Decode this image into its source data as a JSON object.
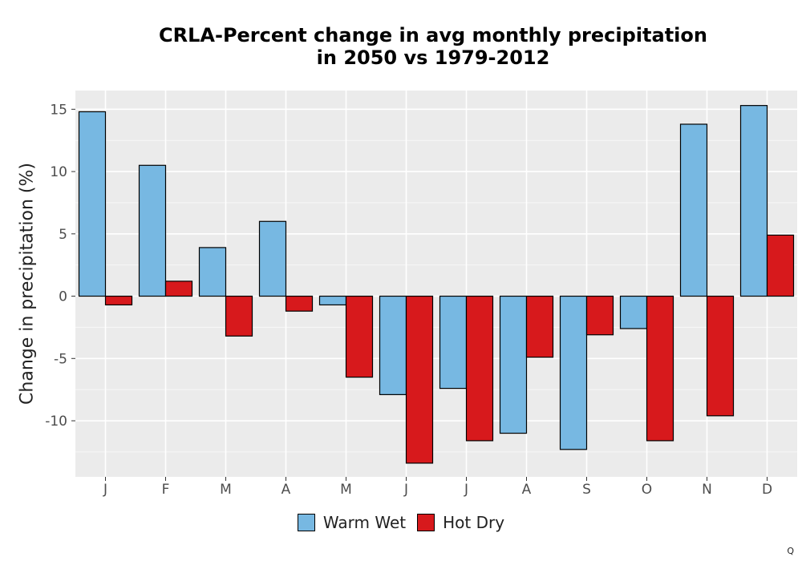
{
  "chart_data": {
    "type": "bar",
    "title_line1": "CRLA-Percent change in avg monthly precipitation",
    "title_line2": "in 2050 vs 1979-2012",
    "xlabel": "",
    "ylabel": "Change in precipitation (%)",
    "categories": [
      "J",
      "F",
      "M",
      "A",
      "M",
      "J",
      "J",
      "A",
      "S",
      "O",
      "N",
      "D"
    ],
    "ylim": [
      -14.5,
      16.5
    ],
    "yticks": [
      15,
      10,
      5,
      0,
      -5,
      -10
    ],
    "ytick_labels": [
      "15",
      "10",
      "5",
      "0",
      "-5",
      "-10"
    ],
    "grid": true,
    "legend_position": "bottom",
    "series": [
      {
        "name": "Warm Wet",
        "color": "#77b8e2",
        "values": [
          14.8,
          10.5,
          3.9,
          6.0,
          -0.7,
          -7.9,
          -7.4,
          -11.0,
          -12.3,
          -2.6,
          13.8,
          15.3
        ]
      },
      {
        "name": "Hot Dry",
        "color": "#d7191c",
        "values": [
          -0.7,
          1.2,
          -3.2,
          -1.2,
          -6.5,
          -13.4,
          -11.6,
          -4.9,
          -3.1,
          -11.6,
          -9.6,
          4.9
        ]
      }
    ]
  },
  "corner_mark": "Q"
}
